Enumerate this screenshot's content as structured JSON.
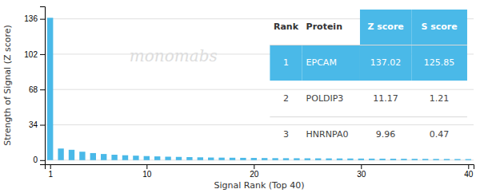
{
  "chart_data": {
    "type": "bar",
    "xlabel": "Signal Rank (Top 40)",
    "ylabel": "Strength of Signal (Z score)",
    "x": [
      1,
      2,
      3,
      4,
      5,
      6,
      7,
      8,
      9,
      10,
      11,
      12,
      13,
      14,
      15,
      16,
      17,
      18,
      19,
      20,
      21,
      22,
      23,
      24,
      25,
      26,
      27,
      28,
      29,
      30,
      31,
      32,
      33,
      34,
      35,
      36,
      37,
      38,
      39,
      40
    ],
    "values": [
      137.02,
      11.17,
      9.96,
      8.1,
      6.8,
      5.9,
      5.2,
      4.7,
      4.3,
      3.9,
      3.6,
      3.3,
      3.1,
      2.9,
      2.7,
      2.5,
      2.4,
      2.3,
      2.2,
      2.1,
      2.0,
      1.9,
      1.85,
      1.8,
      1.75,
      1.7,
      1.65,
      1.6,
      1.55,
      1.5,
      1.45,
      1.4,
      1.35,
      1.3,
      1.25,
      1.2,
      1.15,
      1.1,
      1.05,
      1.0
    ],
    "color": "#4ab9e8",
    "xlim": [
      0.5,
      40.5
    ],
    "xticks": [
      1,
      10,
      20,
      30,
      40
    ],
    "ylim": [
      -4,
      148
    ],
    "yticks": [
      0,
      34,
      68,
      102,
      136
    ],
    "grid": true,
    "annotations": [
      "monomabs"
    ],
    "table": {
      "header": [
        "Rank",
        "Protein",
        "Z score",
        "S score"
      ],
      "rows": [
        [
          "1",
          "EPCAM",
          "137.02",
          "125.85"
        ],
        [
          "2",
          "POLDIP3",
          "11.17",
          "1.21"
        ],
        [
          "3",
          "HNRNPA0",
          "9.96",
          "0.47"
        ]
      ]
    }
  }
}
